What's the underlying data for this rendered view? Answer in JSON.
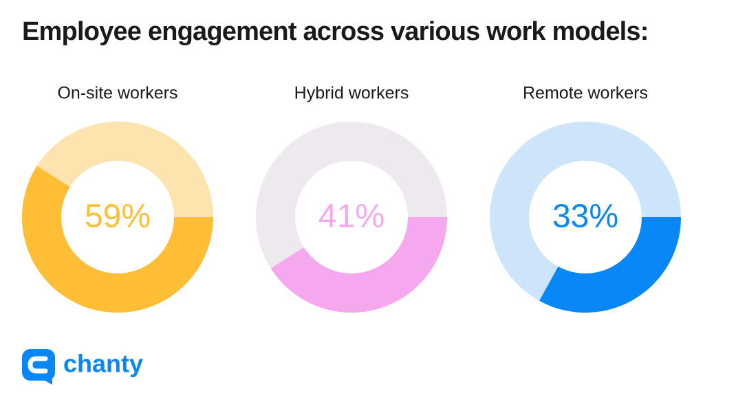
{
  "header": {
    "title": "Employee engagement across various work models:"
  },
  "brand": {
    "name": "chanty"
  },
  "chart_data": [
    {
      "type": "donut",
      "title": "On-site workers",
      "values": [
        59
      ],
      "value_labels": [
        "59%"
      ],
      "color": "#ffbe36",
      "track_color": "#fde3ae"
    },
    {
      "type": "donut",
      "title": "Hybrid workers",
      "values": [
        41
      ],
      "value_labels": [
        "41%"
      ],
      "color": "#f6a8ee",
      "track_color": "#eee8ef"
    },
    {
      "type": "donut",
      "title": "Remote workers",
      "values": [
        33
      ],
      "value_labels": [
        "33%"
      ],
      "color": "#0a87f7",
      "track_color": "#cde5fb"
    }
  ]
}
